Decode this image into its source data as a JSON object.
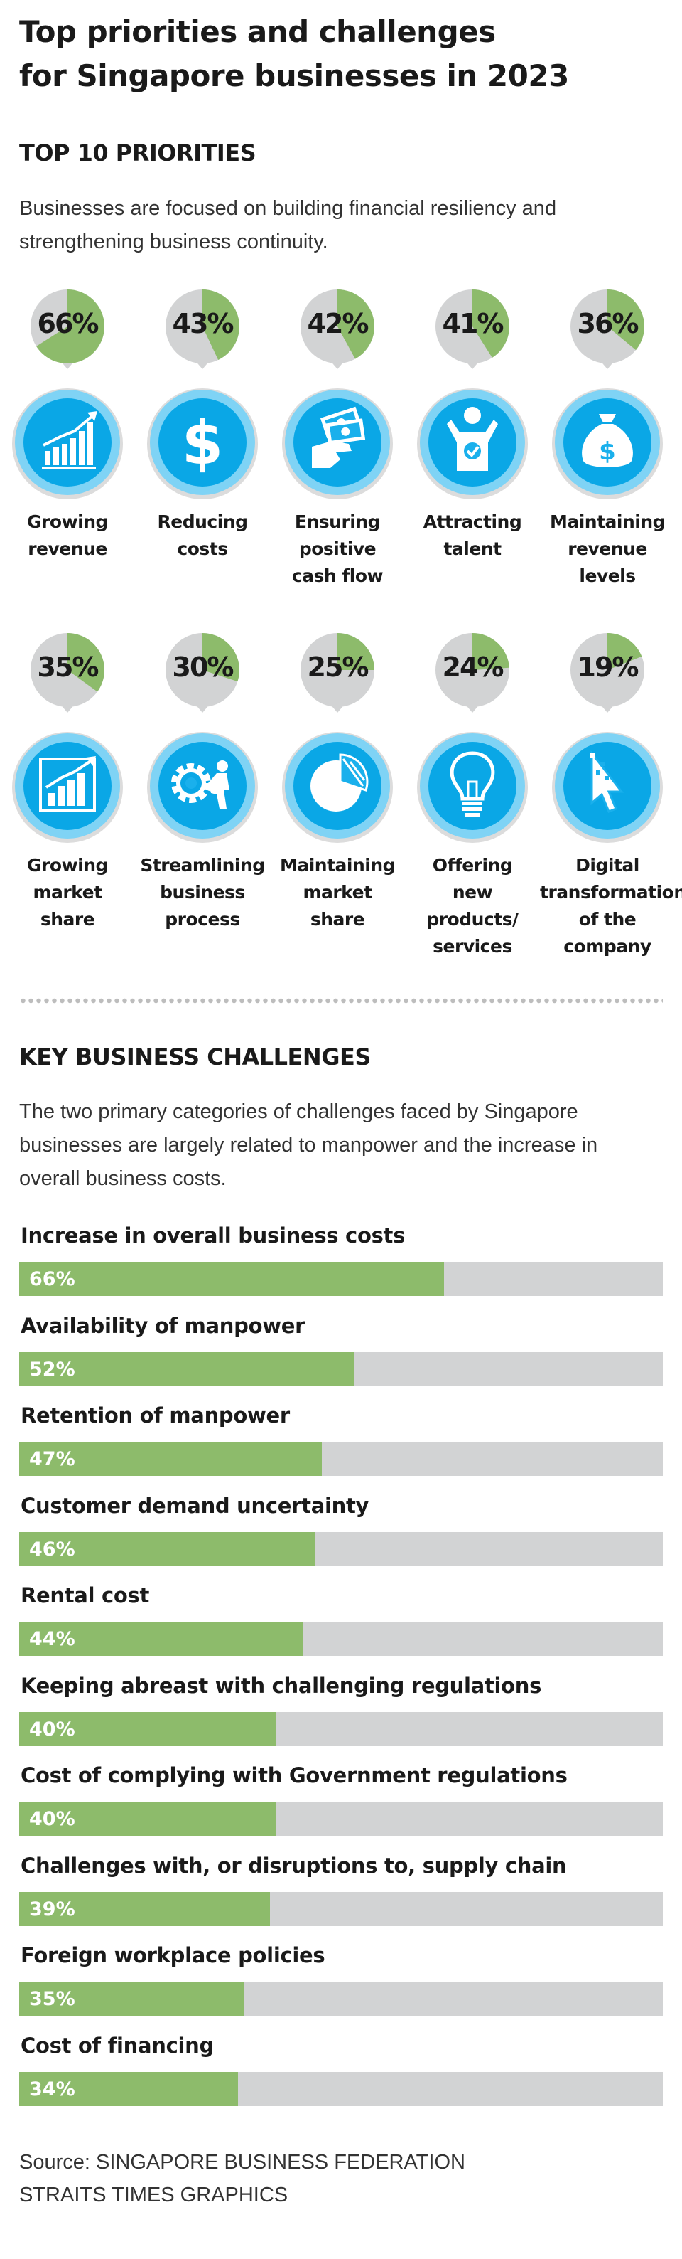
{
  "title_line1": "Top priorities and challenges",
  "title_line2": "for Singapore businesses in 2023",
  "priorities": {
    "heading": "TOP 10 PRIORITIES",
    "desc_line1": "Businesses are focused on building financial resiliency and",
    "desc_line2": "strengthening business continuity.",
    "items": [
      {
        "pct": "66%",
        "value": 66,
        "icon": "bar-chart-growth-icon",
        "label": [
          "Growing",
          "revenue"
        ]
      },
      {
        "pct": "43%",
        "value": 43,
        "icon": "dollar-sign-icon",
        "label": [
          "Reducing",
          "costs"
        ]
      },
      {
        "pct": "42%",
        "value": 42,
        "icon": "cash-in-hand-icon",
        "label": [
          "Ensuring",
          "positive",
          "cash flow"
        ]
      },
      {
        "pct": "41%",
        "value": 41,
        "icon": "person-badge-icon",
        "label": [
          "Attracting",
          "talent"
        ]
      },
      {
        "pct": "36%",
        "value": 36,
        "icon": "money-bag-icon",
        "label": [
          "Maintaining",
          "revenue",
          "levels"
        ]
      },
      {
        "pct": "35%",
        "value": 35,
        "icon": "market-growth-chart-icon",
        "label": [
          "Growing",
          "market",
          "share"
        ]
      },
      {
        "pct": "30%",
        "value": 30,
        "icon": "gear-person-icon",
        "label": [
          "Streamlining",
          "business",
          "process"
        ]
      },
      {
        "pct": "25%",
        "value": 25,
        "icon": "pie-chart-icon",
        "label": [
          "Maintaining",
          "market",
          "share"
        ]
      },
      {
        "pct": "24%",
        "value": 24,
        "icon": "light-bulb-icon",
        "label": [
          "Offering",
          "new",
          "products/",
          "services"
        ]
      },
      {
        "pct": "19%",
        "value": 19,
        "icon": "pixel-cursor-icon",
        "label": [
          "Digital",
          "transformation",
          "of the",
          "company"
        ]
      }
    ]
  },
  "challenges": {
    "heading": "KEY BUSINESS CHALLENGES",
    "desc_line1": "The two primary categories of challenges faced by Singapore",
    "desc_line2": "businesses are largely related to manpower and the increase in",
    "desc_line3": "overall business costs."
  },
  "chart_data": {
    "type": "bar",
    "categories": [
      "Increase in overall business costs",
      "Availability of manpower",
      "Retention of manpower",
      "Customer demand uncertainty",
      "Rental cost",
      "Keeping abreast with challenging regulations",
      "Cost of complying with Government regulations",
      "Challenges with, or disruptions to, supply chain",
      "Foreign workplace policies",
      "Cost of financing"
    ],
    "values": [
      66,
      52,
      47,
      46,
      44,
      40,
      40,
      39,
      35,
      34
    ],
    "value_labels": [
      "66%",
      "52%",
      "47%",
      "46%",
      "44%",
      "40%",
      "40%",
      "39%",
      "35%",
      "34%"
    ],
    "xlim": [
      0,
      100
    ]
  },
  "source_line1": "Source: SINGAPORE BUSINESS FEDERATION",
  "source_line2": "STRAITS TIMES GRAPHICS",
  "colors": {
    "green": "#8dbb6b",
    "grey": "#d2d3d4",
    "blue": "#0aa7e6",
    "light_blue": "#7fd3f5",
    "bubble_grey": "#d2d3d4"
  }
}
